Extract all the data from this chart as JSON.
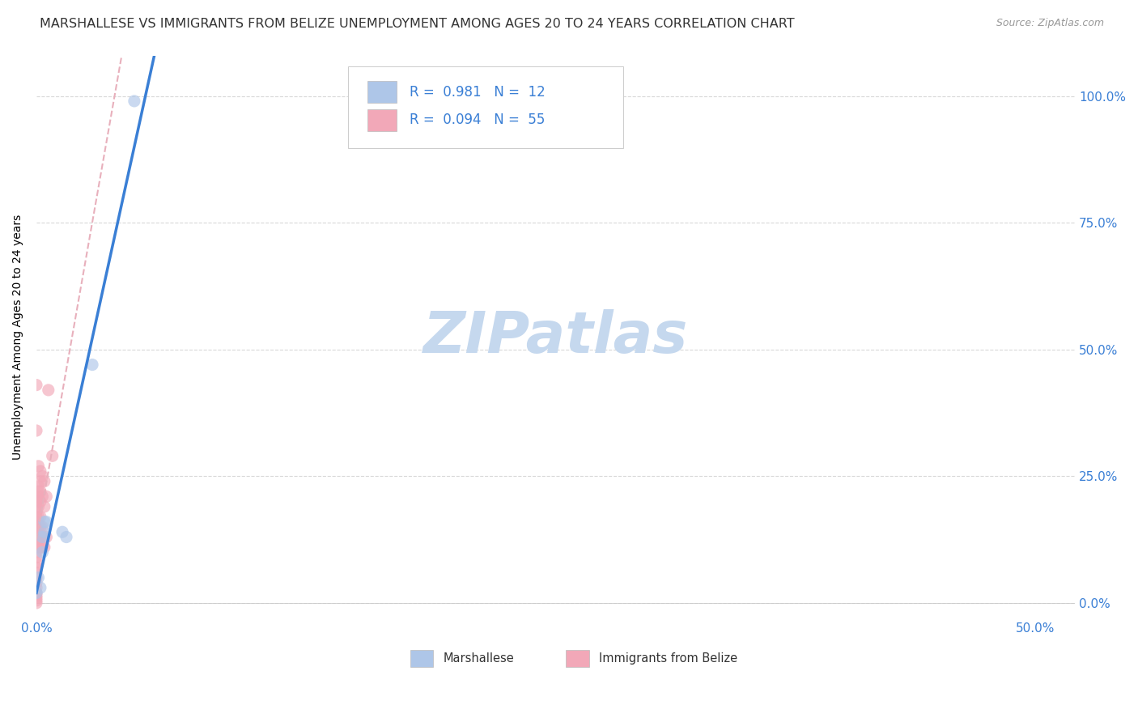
{
  "title": "MARSHALLESE VS IMMIGRANTS FROM BELIZE UNEMPLOYMENT AMONG AGES 20 TO 24 YEARS CORRELATION CHART",
  "source": "Source: ZipAtlas.com",
  "ylabel": "Unemployment Among Ages 20 to 24 years",
  "xlim": [
    0.0,
    0.52
  ],
  "ylim": [
    -0.03,
    1.08
  ],
  "xtick_vals": [
    0.0,
    0.1,
    0.2,
    0.3,
    0.4,
    0.5
  ],
  "xtick_labels": [
    "0.0%",
    "",
    "",
    "",
    "",
    "50.0%"
  ],
  "ytick_vals": [
    0.0,
    0.25,
    0.5,
    0.75,
    1.0
  ],
  "ytick_labels_right": [
    "0.0%",
    "25.0%",
    "50.0%",
    "75.0%",
    "100.0%"
  ],
  "watermark": "ZIPatlas",
  "legend_R1": "R = 0.981",
  "legend_N1": "N = 12",
  "legend_R2": "R = 0.094",
  "legend_N2": "N = 55",
  "marshallese_scatter": [
    [
      0.0,
      0.02
    ],
    [
      0.001,
      0.05
    ],
    [
      0.002,
      0.03
    ],
    [
      0.003,
      0.1
    ],
    [
      0.003,
      0.13
    ],
    [
      0.004,
      0.14
    ],
    [
      0.004,
      0.16
    ],
    [
      0.005,
      0.16
    ],
    [
      0.013,
      0.14
    ],
    [
      0.015,
      0.13
    ],
    [
      0.028,
      0.47
    ],
    [
      0.049,
      0.99
    ]
  ],
  "belize_scatter": [
    [
      0.0,
      0.0
    ],
    [
      0.0,
      0.005
    ],
    [
      0.0,
      0.01
    ],
    [
      0.0,
      0.015
    ],
    [
      0.0,
      0.02
    ],
    [
      0.0,
      0.03
    ],
    [
      0.0,
      0.04
    ],
    [
      0.0,
      0.05
    ],
    [
      0.0,
      0.06
    ],
    [
      0.0,
      0.07
    ],
    [
      0.0,
      0.08
    ],
    [
      0.0,
      0.09
    ],
    [
      0.0,
      0.1
    ],
    [
      0.0,
      0.11
    ],
    [
      0.0,
      0.115
    ],
    [
      0.0,
      0.12
    ],
    [
      0.0,
      0.13
    ],
    [
      0.0,
      0.14
    ],
    [
      0.0,
      0.15
    ],
    [
      0.0,
      0.16
    ],
    [
      0.0,
      0.17
    ],
    [
      0.0,
      0.18
    ],
    [
      0.0,
      0.19
    ],
    [
      0.0,
      0.2
    ],
    [
      0.001,
      0.11
    ],
    [
      0.001,
      0.13
    ],
    [
      0.001,
      0.15
    ],
    [
      0.001,
      0.17
    ],
    [
      0.001,
      0.19
    ],
    [
      0.001,
      0.21
    ],
    [
      0.001,
      0.22
    ],
    [
      0.001,
      0.23
    ],
    [
      0.002,
      0.11
    ],
    [
      0.002,
      0.13
    ],
    [
      0.002,
      0.15
    ],
    [
      0.002,
      0.17
    ],
    [
      0.002,
      0.2
    ],
    [
      0.002,
      0.22
    ],
    [
      0.002,
      0.24
    ],
    [
      0.003,
      0.11
    ],
    [
      0.003,
      0.13
    ],
    [
      0.003,
      0.15
    ],
    [
      0.003,
      0.21
    ],
    [
      0.004,
      0.11
    ],
    [
      0.004,
      0.19
    ],
    [
      0.004,
      0.24
    ],
    [
      0.005,
      0.13
    ],
    [
      0.005,
      0.21
    ],
    [
      0.006,
      0.42
    ],
    [
      0.008,
      0.29
    ],
    [
      0.0,
      0.34
    ],
    [
      0.0,
      0.43
    ],
    [
      0.003,
      0.25
    ],
    [
      0.002,
      0.26
    ],
    [
      0.001,
      0.27
    ]
  ],
  "marshallese_line_color": "#3a7fd5",
  "belize_line_color": "#e8b0bc",
  "marshallese_scatter_color": "#aec6e8",
  "belize_scatter_color": "#f2a8b8",
  "grid_color": "#d8d8d8",
  "background_color": "#ffffff",
  "title_fontsize": 11.5,
  "axis_label_fontsize": 10,
  "tick_fontsize": 11,
  "tick_color": "#3a7fd5",
  "watermark_color": "#c5d8ee",
  "watermark_fontsize": 52,
  "legend_fontsize": 12,
  "scatter_size": 120,
  "scatter_alpha": 0.65
}
